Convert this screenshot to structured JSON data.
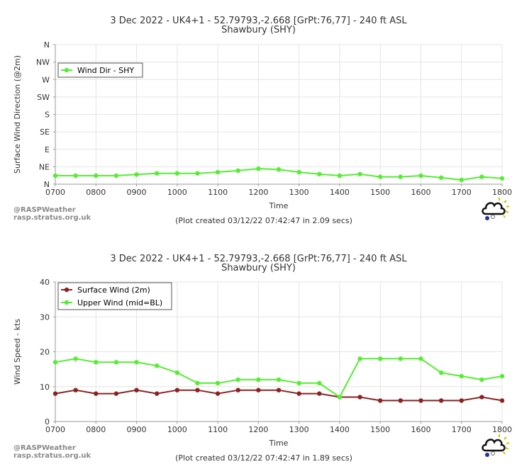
{
  "chart_data": [
    {
      "type": "line",
      "title": "3 Dec 2022 - UK4+1 - 52.79793,-2.668 [GrPt:76,77]  - 240 ft ASL",
      "subtitle": "Shawbury (SHY)",
      "xlabel": "Time",
      "ylabel": "Surface Wind Direction (@2m)",
      "x": [
        "0700",
        "0730",
        "0800",
        "0830",
        "0900",
        "0930",
        "1000",
        "1030",
        "1100",
        "1130",
        "1200",
        "1230",
        "1300",
        "1330",
        "1400",
        "1430",
        "1500",
        "1530",
        "1600",
        "1630",
        "1700",
        "1730",
        "1800"
      ],
      "xticks": [
        "0700",
        "0800",
        "0900",
        "1000",
        "1100",
        "1200",
        "1300",
        "1400",
        "1500",
        "1600",
        "1700",
        "1800"
      ],
      "ylim": [
        0,
        360
      ],
      "yticks": [
        {
          "value": 0,
          "label": "N"
        },
        {
          "value": 45,
          "label": "NE"
        },
        {
          "value": 90,
          "label": "E"
        },
        {
          "value": 135,
          "label": "SE"
        },
        {
          "value": 180,
          "label": "S"
        },
        {
          "value": 225,
          "label": "SW"
        },
        {
          "value": 270,
          "label": "W"
        },
        {
          "value": 315,
          "label": "NW"
        },
        {
          "value": 360,
          "label": "N"
        }
      ],
      "series": [
        {
          "name": "Wind Dir - SHY",
          "color": "#55ee33",
          "values": [
            22,
            22,
            22,
            22,
            25,
            28,
            28,
            28,
            31,
            35,
            40,
            38,
            31,
            26,
            22,
            26,
            19,
            19,
            22,
            17,
            11,
            19,
            15
          ]
        }
      ],
      "legend": "top-left",
      "grid": true,
      "credit": [
        "@RASPWeather",
        "rasp.stratus.org.uk"
      ],
      "footer": "(Plot created 03/12/22 07:42:47 in 2.09 secs)"
    },
    {
      "type": "line",
      "title": "3 Dec 2022 - UK4+1 - 52.79793,-2.668 [GrPt:76,77]  - 240 ft ASL",
      "subtitle": "Shawbury (SHY)",
      "xlabel": "Time",
      "ylabel": "Wind Speed - kts",
      "x": [
        "0700",
        "0730",
        "0800",
        "0830",
        "0900",
        "0930",
        "1000",
        "1030",
        "1100",
        "1130",
        "1200",
        "1230",
        "1300",
        "1330",
        "1400",
        "1430",
        "1500",
        "1530",
        "1600",
        "1630",
        "1700",
        "1730",
        "1800"
      ],
      "xticks": [
        "0700",
        "0800",
        "0900",
        "1000",
        "1100",
        "1200",
        "1300",
        "1400",
        "1500",
        "1600",
        "1700",
        "1800"
      ],
      "ylim": [
        0,
        40
      ],
      "yticks": [
        {
          "value": 0,
          "label": "0"
        },
        {
          "value": 10,
          "label": "10"
        },
        {
          "value": 20,
          "label": "20"
        },
        {
          "value": 30,
          "label": "30"
        },
        {
          "value": 40,
          "label": "40"
        }
      ],
      "series": [
        {
          "name": "Surface Wind (2m)",
          "color": "#8b2323",
          "values": [
            8,
            9,
            8,
            8,
            9,
            8,
            9,
            9,
            8,
            9,
            9,
            9,
            8,
            8,
            7,
            7,
            6,
            6,
            6,
            6,
            6,
            7,
            6
          ]
        },
        {
          "name": "Upper Wind (mid=BL)",
          "color": "#55ee33",
          "values": [
            17,
            18,
            17,
            17,
            17,
            16,
            14,
            11,
            11,
            12,
            12,
            12,
            11,
            11,
            7,
            18,
            18,
            18,
            18,
            14,
            13,
            12,
            13
          ]
        }
      ],
      "legend": "top-left",
      "grid": true,
      "credit": [
        "@RASPWeather",
        "rasp.stratus.org.uk"
      ],
      "footer": "(Plot created 03/12/22 07:42:47 in 1.89 secs)"
    }
  ]
}
